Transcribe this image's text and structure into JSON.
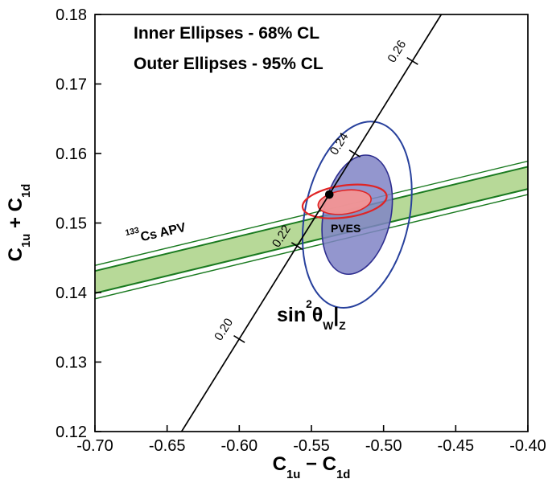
{
  "figure": {
    "legend": {
      "inner": "Inner Ellipses - 68% CL",
      "outer": "Outer Ellipses - 95% CL"
    },
    "annotations": {
      "band_sup": "133",
      "band_text": "Cs APV",
      "pves": "PVES",
      "sin_base": "sin",
      "sin_exp": "2",
      "sin_theta": "θ",
      "sin_sub": "W",
      "sin_bar": "|",
      "sin_z": "Z"
    },
    "axis_titles": {
      "x": {
        "c1": "C",
        "s1": "1u",
        "op": " − ",
        "c2": "C",
        "s2": "1d"
      },
      "y": {
        "c1": "C",
        "s1": "1u",
        "op": " + ",
        "c2": "C",
        "s2": "1d"
      }
    }
  },
  "chart_data": {
    "type": "scatter",
    "xlabel": "C1u − C1d",
    "ylabel": "C1u + C1d",
    "xlim": [
      -0.7,
      -0.4
    ],
    "ylim": [
      0.12,
      0.18
    ],
    "x_tick_labels": [
      "-0.70",
      "-0.65",
      "-0.60",
      "-0.55",
      "-0.50",
      "-0.45",
      "-0.40"
    ],
    "y_tick_labels": [
      "0.12",
      "0.13",
      "0.14",
      "0.15",
      "0.16",
      "0.17",
      "0.18"
    ],
    "confidence_levels": {
      "inner": "68% CL",
      "outer": "95% CL"
    },
    "band_133Cs_APV": {
      "label": "133Cs APV",
      "center_line": {
        "slope": 0.05,
        "intercept": 0.1765
      },
      "half_width_inner_68": 0.0016,
      "half_width_outer_95": 0.0024,
      "fill_color": "#b7d998",
      "edge_color": "#1a7a20"
    },
    "ellipses": [
      {
        "id": "pves-outer-95-ellipse",
        "cx": -0.5183,
        "cy": 0.1512,
        "rx": 0.0361,
        "ry": 0.0136,
        "rotation_deg": 12,
        "stroke": "#27409c",
        "fill": "none",
        "stroke_width": 2
      },
      {
        "id": "pves-inner-68-ellipse",
        "cx": -0.5183,
        "cy": 0.1512,
        "rx": 0.0233,
        "ry": 0.0087,
        "rotation_deg": 12,
        "stroke": "#2e2e8f",
        "fill": "rgba(128,132,198,0.85)",
        "stroke_width": 1.6
      },
      {
        "id": "combined-outer-95-ellipse",
        "cx": -0.527,
        "cy": 0.1531,
        "rx": 0.0294,
        "ry": 0.0023,
        "rotation_deg": -8,
        "stroke": "#e02424",
        "fill": "none",
        "stroke_width": 2.2
      },
      {
        "id": "combined-inner-68-ellipse",
        "cx": -0.527,
        "cy": 0.153,
        "rx": 0.0185,
        "ry": 0.0017,
        "rotation_deg": -8,
        "stroke": "#e02424",
        "fill": "rgba(242,148,148,0.95)",
        "stroke_width": 1.6
      }
    ],
    "sm_line": {
      "p1": {
        "x": -0.64,
        "y": 0.12
      },
      "p2": {
        "x": -0.46,
        "y": 0.18
      },
      "ticks": [
        {
          "label": "0.20",
          "x": -0.6,
          "y": 0.1333
        },
        {
          "label": "0.22",
          "x": -0.56,
          "y": 0.1467
        },
        {
          "label": "0.24",
          "x": -0.52,
          "y": 0.16
        },
        {
          "label": "0.26",
          "x": -0.48,
          "y": 0.1733
        }
      ],
      "sm_point": {
        "x": -0.5376,
        "y": 0.1541
      }
    }
  }
}
